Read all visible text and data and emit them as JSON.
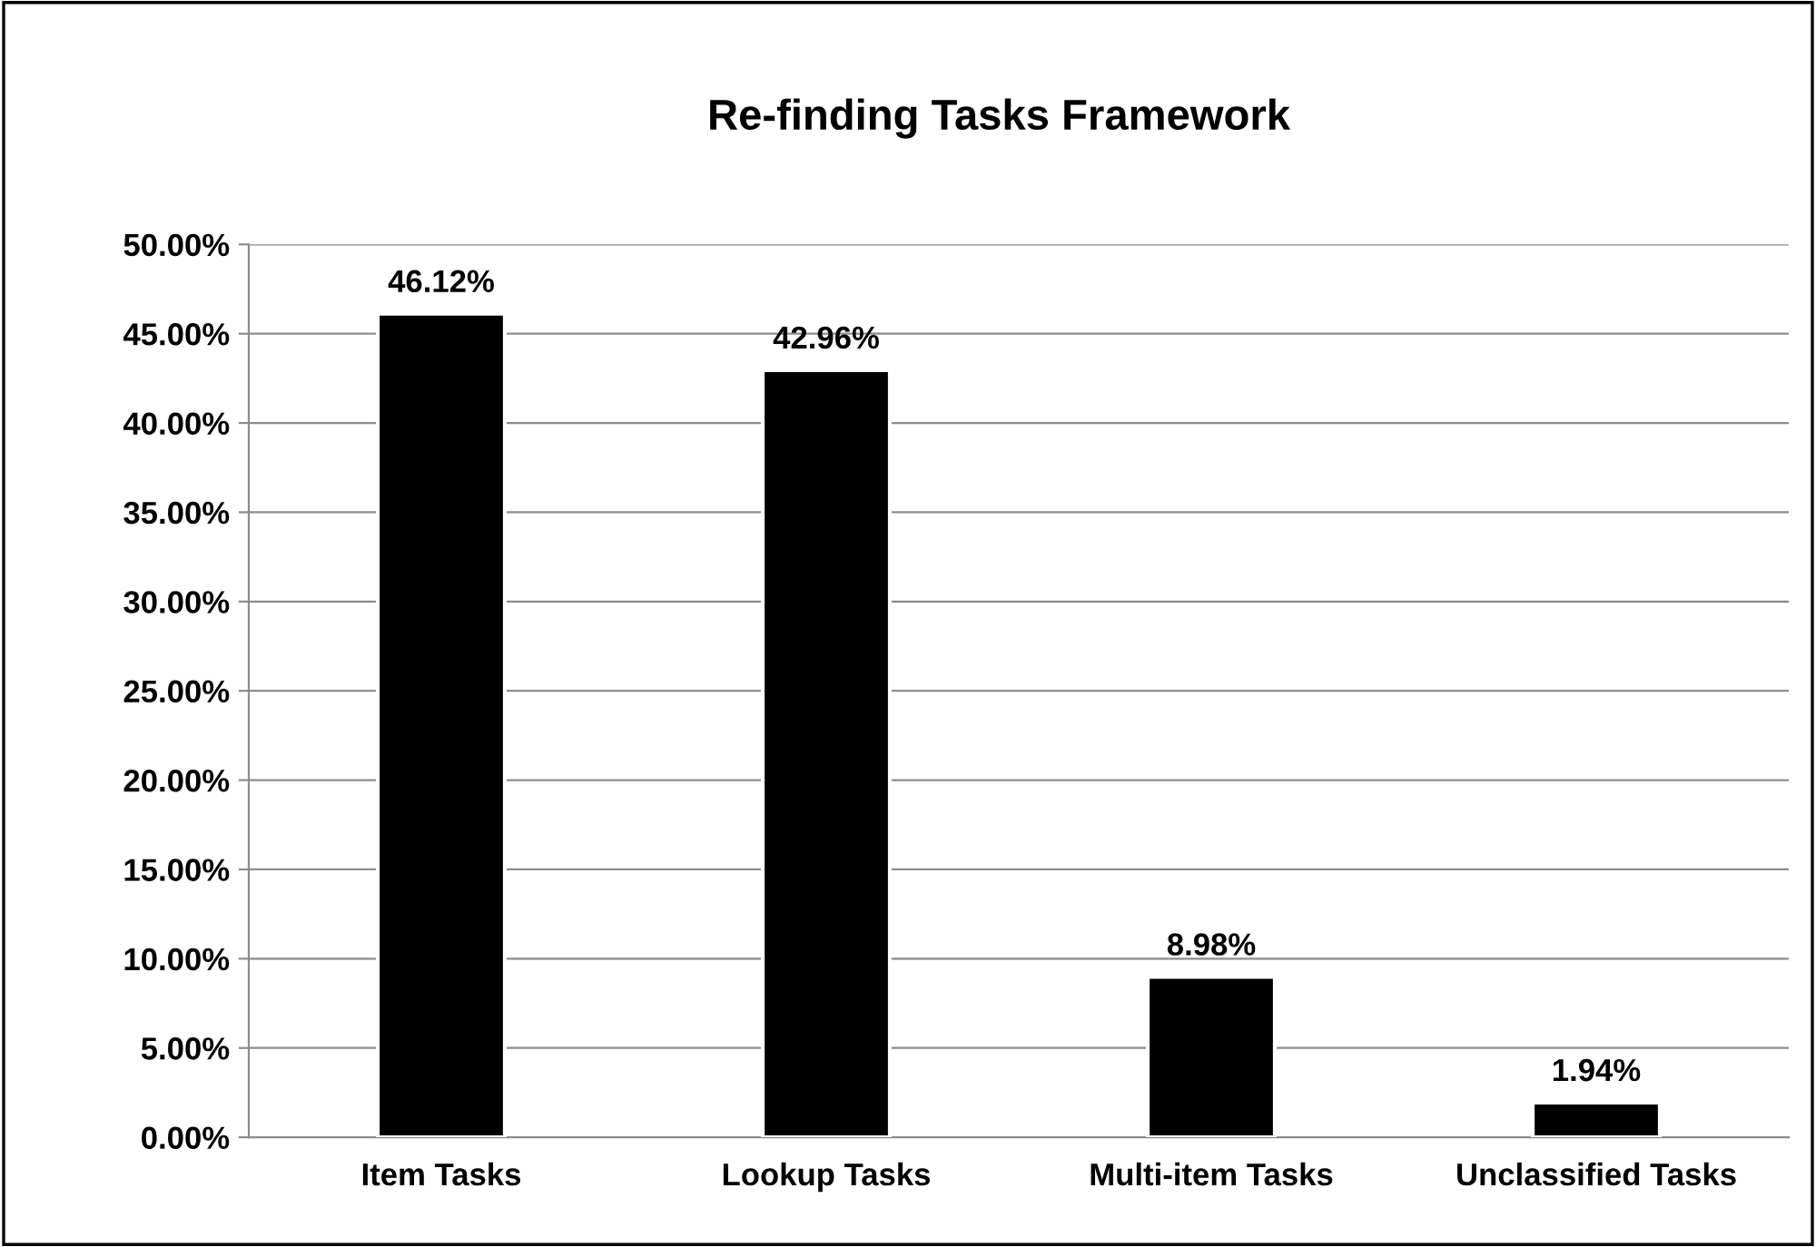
{
  "chart_data": {
    "type": "bar",
    "title": "Re-finding Tasks Framework",
    "categories": [
      "Item Tasks",
      "Lookup Tasks",
      "Multi-item Tasks",
      "Unclassified Tasks"
    ],
    "values": [
      46.12,
      42.96,
      8.98,
      1.94
    ],
    "value_labels": [
      "46.12%",
      "42.96%",
      "8.98%",
      "1.94%"
    ],
    "color": "#000000",
    "ylim": [
      0,
      50
    ],
    "yticks": [
      {
        "value": 0,
        "label": "0.00%"
      },
      {
        "value": 5,
        "label": "5.00%"
      },
      {
        "value": 10,
        "label": "10.00%"
      },
      {
        "value": 15,
        "label": "15.00%"
      },
      {
        "value": 20,
        "label": "20.00%"
      },
      {
        "value": 25,
        "label": "25.00%"
      },
      {
        "value": 30,
        "label": "30.00%"
      },
      {
        "value": 35,
        "label": "35.00%"
      },
      {
        "value": 40,
        "label": "40.00%"
      },
      {
        "value": 45,
        "label": "45.00%"
      },
      {
        "value": 50,
        "label": "50.00%"
      }
    ],
    "grid": "y",
    "legend": false
  }
}
